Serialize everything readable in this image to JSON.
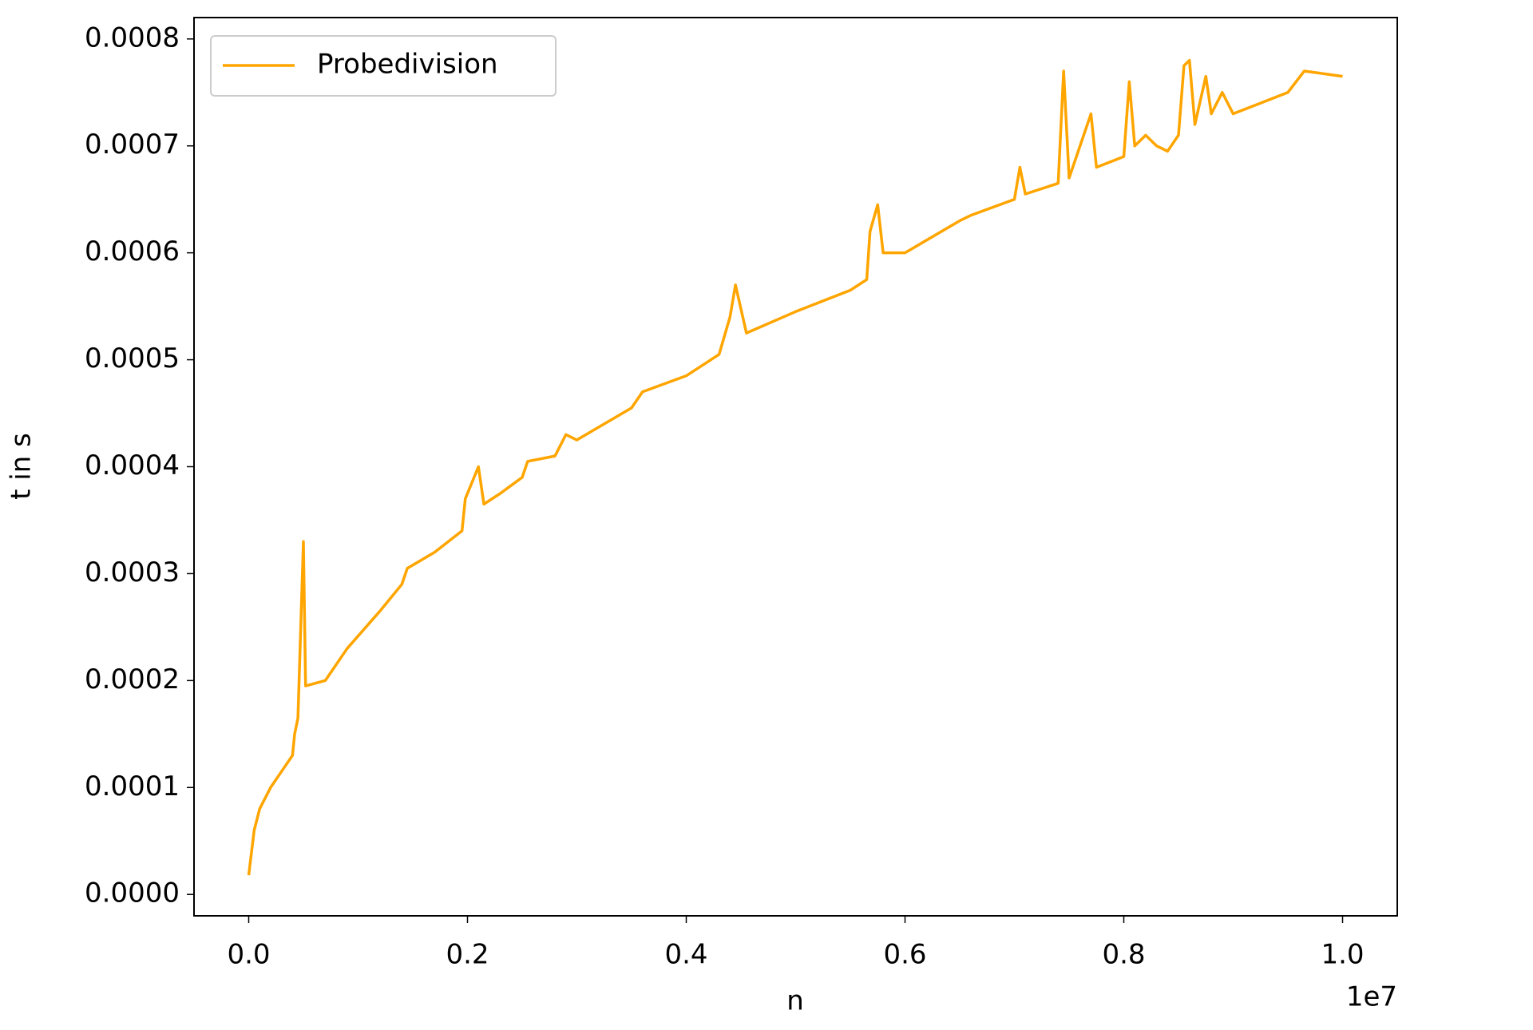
{
  "chart_data": {
    "type": "line",
    "x_label": "n",
    "y_label": "t in s",
    "x_offset_label": "1e7",
    "x": [
      0,
      50000,
      100000,
      200000,
      300000,
      400000,
      420000,
      450000,
      500000,
      520000,
      700000,
      900000,
      1200000,
      1400000,
      1450000,
      1700000,
      1950000,
      1980000,
      2100000,
      2150000,
      2300000,
      2500000,
      2550000,
      2800000,
      2900000,
      3000000,
      3500000,
      3600000,
      4000000,
      4300000,
      4400000,
      4450000,
      4550000,
      5000000,
      5500000,
      5650000,
      5680000,
      5750000,
      5800000,
      6000000,
      6500000,
      6600000,
      7000000,
      7050000,
      7100000,
      7400000,
      7450000,
      7500000,
      7700000,
      7750000,
      8000000,
      8050000,
      8100000,
      8200000,
      8300000,
      8400000,
      8500000,
      8550000,
      8600000,
      8650000,
      8750000,
      8800000,
      8900000,
      9000000,
      9500000,
      9650000,
      10000000
    ],
    "series": [
      {
        "name": "Probedivision",
        "color": "#ffa500",
        "values": [
          1.8e-05,
          6e-05,
          8e-05,
          0.0001,
          0.000115,
          0.00013,
          0.00015,
          0.000165,
          0.00033,
          0.000195,
          0.0002,
          0.00023,
          0.000265,
          0.00029,
          0.000305,
          0.00032,
          0.00034,
          0.00037,
          0.0004,
          0.000365,
          0.000375,
          0.00039,
          0.000405,
          0.00041,
          0.00043,
          0.000425,
          0.000455,
          0.00047,
          0.000485,
          0.000505,
          0.00054,
          0.00057,
          0.000525,
          0.000545,
          0.000565,
          0.000575,
          0.00062,
          0.000645,
          0.0006,
          0.0006,
          0.00063,
          0.000635,
          0.00065,
          0.00068,
          0.000655,
          0.000665,
          0.00077,
          0.00067,
          0.00073,
          0.00068,
          0.00069,
          0.00076,
          0.0007,
          0.00071,
          0.0007,
          0.000695,
          0.00071,
          0.000775,
          0.00078,
          0.00072,
          0.000765,
          0.00073,
          0.00075,
          0.00073,
          0.00075,
          0.00077,
          0.000765
        ]
      }
    ],
    "xlim": [
      -500000,
      10500000
    ],
    "xticks": [
      {
        "value": 0,
        "label": "0.0"
      },
      {
        "value": 2000000,
        "label": "0.2"
      },
      {
        "value": 4000000,
        "label": "0.4"
      },
      {
        "value": 6000000,
        "label": "0.6"
      },
      {
        "value": 8000000,
        "label": "0.8"
      },
      {
        "value": 10000000,
        "label": "1.0"
      }
    ],
    "ylim": [
      -2e-05,
      0.00082
    ],
    "yticks": [
      {
        "value": 0,
        "label": "0.0000"
      },
      {
        "value": 0.0001,
        "label": "0.0001"
      },
      {
        "value": 0.0002,
        "label": "0.0002"
      },
      {
        "value": 0.0003,
        "label": "0.0003"
      },
      {
        "value": 0.0004,
        "label": "0.0004"
      },
      {
        "value": 0.0005,
        "label": "0.0005"
      },
      {
        "value": 0.0006,
        "label": "0.0006"
      },
      {
        "value": 0.0007,
        "label": "0.0007"
      },
      {
        "value": 0.0008,
        "label": "0.0008"
      }
    ],
    "legend": "upper left",
    "grid": false
  }
}
